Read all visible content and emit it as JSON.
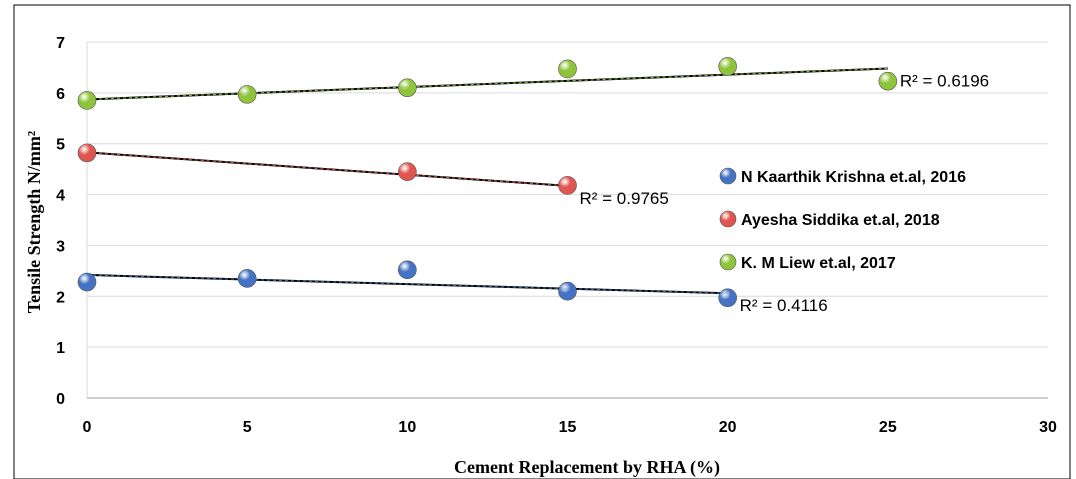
{
  "chart_data": {
    "type": "scatter",
    "title": "",
    "xlabel": "Cement Replacement by RHA (%)",
    "ylabel": "Tensile Strength N/mm²",
    "xlim": [
      0,
      30
    ],
    "ylim": [
      0,
      7
    ],
    "x_ticks": [
      "0",
      "5",
      "10",
      "15",
      "20",
      "25",
      "30"
    ],
    "y_ticks": [
      "0",
      "1",
      "2",
      "3",
      "4",
      "5",
      "6",
      "7"
    ],
    "grid": "horizontal",
    "legend_position": "right",
    "series": [
      {
        "name": "N Kaarthik Krishna et.al, 2016",
        "color": "#4472c4",
        "x": [
          0,
          5,
          10,
          15,
          20
        ],
        "y": [
          2.28,
          2.35,
          2.52,
          2.1,
          1.97
        ],
        "trendline": {
          "x": [
            0,
            20
          ],
          "y": [
            2.42,
            2.06
          ]
        },
        "r2": "R² = 0.4116"
      },
      {
        "name": "Ayesha Siddika et.al, 2018",
        "color": "#e0554f",
        "x": [
          0,
          10,
          15
        ],
        "y": [
          4.82,
          4.45,
          4.18
        ],
        "trendline": {
          "x": [
            0,
            15
          ],
          "y": [
            4.83,
            4.17
          ]
        },
        "r2": "R² = 0.9765"
      },
      {
        "name": "K. M Liew  et.al, 2017",
        "color": "#8fc43a",
        "x": [
          0,
          5,
          10,
          15,
          20,
          25
        ],
        "y": [
          5.85,
          5.97,
          6.1,
          6.47,
          6.52,
          6.23
        ],
        "trendline": {
          "x": [
            0,
            25
          ],
          "y": [
            5.87,
            6.48
          ]
        },
        "r2": "R² = 0.6196"
      }
    ]
  }
}
